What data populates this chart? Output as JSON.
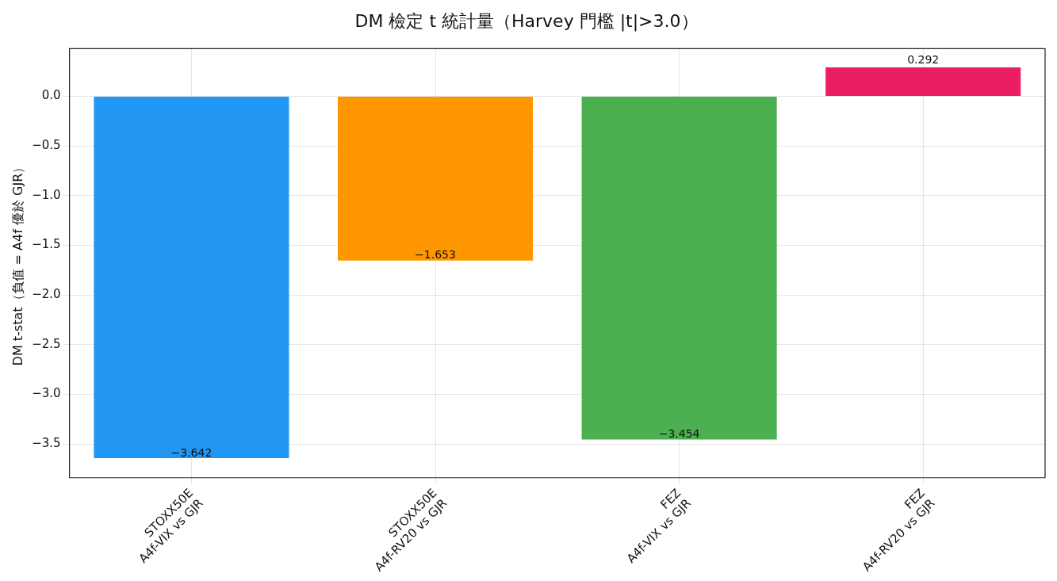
{
  "chart_data": {
    "type": "bar",
    "title": "DM 檢定 t 統計量（Harvey 門檻 |t|>3.0）",
    "ylabel": "DM t-stat（負值 = A4f 優於 GJR）",
    "categories": [
      "STOXX50E\nA4f-VIX vs GJR",
      "STOXX50E\nA4f-RV20 vs GJR",
      "FEZ\nA4f-VIX vs GJR",
      "FEZ\nA4f-RV20 vs GJR"
    ],
    "values": [
      -3.642,
      -1.653,
      -3.454,
      0.292
    ],
    "colors": [
      "#2196f3",
      "#ff9800",
      "#4caf50",
      "#e91e63"
    ],
    "value_labels": [
      "−3.642",
      "−1.653",
      "−3.454",
      "0.292"
    ],
    "ylim": [
      -3.84,
      0.48
    ],
    "yticks": [
      {
        "value": 0,
        "label": "0.0"
      },
      {
        "value": -0.5,
        "label": "−0.5"
      },
      {
        "value": -1,
        "label": "−1.0"
      },
      {
        "value": -1.5,
        "label": "−1.5"
      },
      {
        "value": -2,
        "label": "−2.0"
      },
      {
        "value": -2.5,
        "label": "−2.5"
      },
      {
        "value": -3,
        "label": "−3.0"
      },
      {
        "value": -3.5,
        "label": "−3.5"
      }
    ],
    "grid": true,
    "legend": false
  }
}
